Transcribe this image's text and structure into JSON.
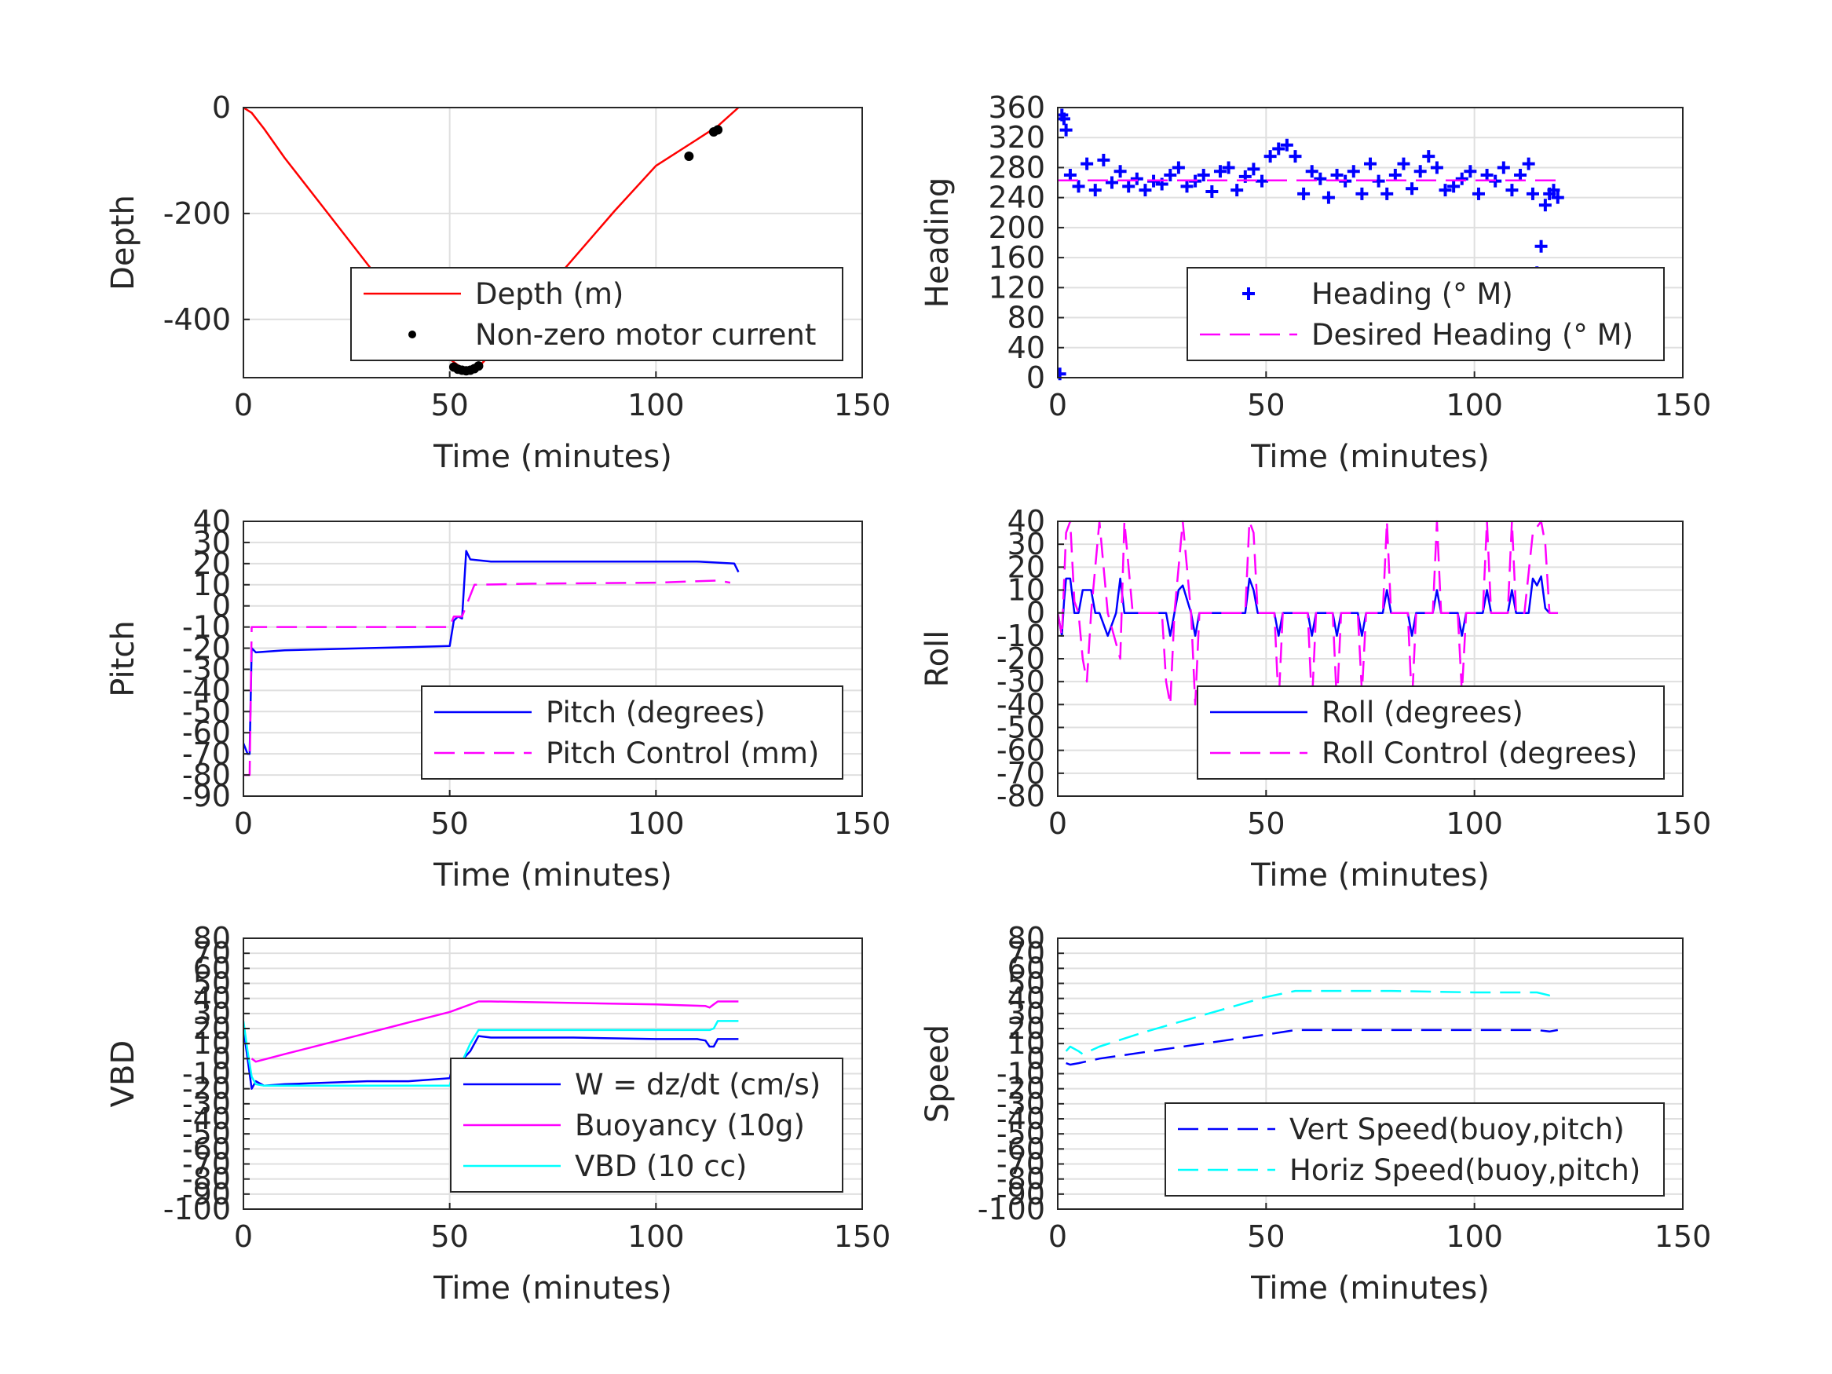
{
  "chart_data": [
    {
      "id": "depth",
      "type": "line",
      "ylabel": "Depth",
      "xlabel": "Time (minutes)",
      "xlim": [
        0,
        150
      ],
      "ylim": [
        -510,
        0
      ],
      "xticks": [
        0,
        50,
        100,
        150
      ],
      "yticks": [
        0,
        -200,
        -400
      ],
      "ytick_labels": [
        "0",
        "-200",
        "-400"
      ],
      "grid": true,
      "legend_position": "lower-right",
      "series": [
        {
          "name": "Depth (m)",
          "style": "solid",
          "color": "#ff0000",
          "x": [
            0,
            2,
            5,
            10,
            20,
            30,
            40,
            50,
            53,
            55,
            57,
            60,
            70,
            80,
            90,
            100,
            110,
            115,
            120
          ],
          "y": [
            0,
            -10,
            -40,
            -95,
            -195,
            -295,
            -395,
            -475,
            -492,
            -495,
            -490,
            -465,
            -375,
            -285,
            -195,
            -110,
            -60,
            -35,
            0
          ]
        },
        {
          "name": "Non-zero motor current",
          "style": "markers",
          "color": "#000000",
          "x": [
            41,
            51,
            52,
            53,
            54,
            55,
            56,
            57,
            108,
            114,
            115
          ],
          "y": [
            -425,
            -490,
            -494,
            -496,
            -497,
            -496,
            -493,
            -488,
            -92,
            -46,
            -42
          ]
        }
      ]
    },
    {
      "id": "heading",
      "type": "line",
      "ylabel": "Heading",
      "xlabel": "Time (minutes)",
      "xlim": [
        0,
        150
      ],
      "ylim": [
        0,
        360
      ],
      "xticks": [
        0,
        50,
        100,
        150
      ],
      "yticks": [
        0,
        40,
        80,
        120,
        160,
        200,
        240,
        280,
        320,
        360
      ],
      "ytick_labels": [
        "0",
        "40",
        "80",
        "120",
        "160",
        "200",
        "240",
        "280",
        "320",
        "360"
      ],
      "grid": true,
      "legend_position": "lower-right",
      "series": [
        {
          "name": "Heading (° M)",
          "style": "markers-plus",
          "color": "#0000ff",
          "x": [
            0.5,
            1,
            1.5,
            2,
            3,
            5,
            7,
            9,
            11,
            13,
            15,
            17,
            19,
            21,
            23,
            25,
            27,
            29,
            31,
            33,
            35,
            37,
            39,
            41,
            43,
            45,
            47,
            49,
            51,
            53,
            55,
            57,
            59,
            61,
            63,
            65,
            67,
            69,
            71,
            73,
            75,
            77,
            79,
            81,
            83,
            85,
            87,
            89,
            91,
            93,
            95,
            97,
            99,
            101,
            103,
            105,
            107,
            109,
            111,
            113,
            114,
            115,
            116,
            117,
            118,
            119,
            120
          ],
          "y": [
            5,
            350,
            345,
            330,
            270,
            255,
            285,
            250,
            290,
            260,
            275,
            255,
            265,
            250,
            262,
            258,
            270,
            280,
            255,
            262,
            270,
            248,
            275,
            280,
            250,
            268,
            278,
            262,
            295,
            305,
            310,
            295,
            245,
            275,
            265,
            240,
            270,
            262,
            275,
            245,
            285,
            262,
            245,
            270,
            285,
            252,
            275,
            295,
            280,
            250,
            255,
            265,
            275,
            245,
            270,
            262,
            280,
            250,
            270,
            285,
            245,
            140,
            175,
            230,
            245,
            250,
            240
          ]
        },
        {
          "name": "Desired Heading (° M)",
          "style": "dashed",
          "color": "#ff00ff",
          "x": [
            0,
            120
          ],
          "y": [
            263,
            263
          ]
        }
      ]
    },
    {
      "id": "pitch",
      "type": "line",
      "ylabel": "Pitch",
      "xlabel": "Time (minutes)",
      "xlim": [
        0,
        150
      ],
      "ylim": [
        -90,
        40
      ],
      "xticks": [
        0,
        50,
        100,
        150
      ],
      "yticks": [
        40,
        30,
        20,
        10,
        0,
        -10,
        -20,
        -30,
        -40,
        -50,
        -60,
        -70,
        -80,
        -90
      ],
      "ytick_labels": [
        "40",
        "30",
        "20",
        "10",
        "0",
        "-10",
        "-20",
        "-30",
        "-40",
        "-50",
        "-60",
        "-70",
        "-80",
        "-90"
      ],
      "grid": true,
      "legend_position": "lower-right",
      "series": [
        {
          "name": "Pitch (degrees)",
          "style": "solid",
          "color": "#0000ff",
          "x": [
            0,
            1,
            1.5,
            2,
            3,
            10,
            20,
            30,
            40,
            50,
            51,
            52,
            53,
            54,
            55,
            60,
            80,
            100,
            110,
            119,
            120
          ],
          "y": [
            -65,
            -70,
            -70,
            -20,
            -22,
            -21,
            -20.5,
            -20,
            -19.5,
            -19,
            -7,
            -5,
            -6,
            26,
            22,
            21,
            21,
            21,
            21,
            20,
            16
          ]
        },
        {
          "name": "Pitch Control (mm)",
          "style": "dashed",
          "color": "#ff00ff",
          "x": [
            0,
            1.5,
            2,
            3,
            50,
            51,
            53,
            56,
            70,
            100,
            115,
            118
          ],
          "y": [
            -80,
            -80,
            -10,
            -10,
            -10,
            -5,
            -5,
            10,
            10.5,
            11,
            12,
            11
          ]
        }
      ]
    },
    {
      "id": "roll",
      "type": "line",
      "ylabel": "Roll",
      "xlabel": "Time (minutes)",
      "xlim": [
        0,
        150
      ],
      "ylim": [
        -80,
        40
      ],
      "xticks": [
        0,
        50,
        100,
        150
      ],
      "yticks": [
        40,
        30,
        20,
        10,
        0,
        -10,
        -20,
        -30,
        -40,
        -50,
        -60,
        -70,
        -80
      ],
      "ytick_labels": [
        "40",
        "30",
        "20",
        "10",
        "0",
        "-10",
        "-20",
        "-30",
        "-40",
        "-50",
        "-60",
        "-70",
        "-80"
      ],
      "grid": true,
      "legend_position": "lower-right",
      "series": [
        {
          "name": "Roll (degrees)",
          "style": "solid",
          "color": "#0000ff",
          "x": [
            0,
            1,
            1.5,
            2,
            3,
            4,
            5,
            6,
            8,
            9,
            10,
            12,
            14,
            15,
            16,
            18,
            26,
            27,
            28,
            29,
            30,
            32,
            33,
            34,
            36,
            45,
            46,
            47,
            48,
            52,
            53,
            54,
            56,
            60,
            61,
            62,
            64,
            66,
            67,
            68,
            70,
            72,
            73,
            74,
            78,
            79,
            80,
            84,
            85,
            86,
            90,
            91,
            92,
            96,
            97,
            98,
            102,
            103,
            104,
            108,
            109,
            110,
            113,
            114,
            115,
            116,
            117,
            118,
            120
          ],
          "y": [
            0,
            -10,
            5,
            15,
            15,
            0,
            0,
            10,
            10,
            0,
            0,
            -10,
            0,
            15,
            0,
            0,
            0,
            -10,
            0,
            10,
            12,
            0,
            -10,
            0,
            0,
            0,
            15,
            10,
            0,
            0,
            -10,
            0,
            0,
            0,
            -10,
            0,
            0,
            0,
            -10,
            0,
            0,
            0,
            -10,
            0,
            0,
            10,
            0,
            0,
            -10,
            0,
            0,
            10,
            0,
            0,
            -10,
            0,
            0,
            10,
            0,
            0,
            10,
            0,
            0,
            15,
            12,
            16,
            2,
            0,
            0
          ]
        },
        {
          "name": "Roll Control (degrees)",
          "style": "dashed",
          "color": "#ff00ff",
          "x": [
            0,
            1,
            2,
            3,
            4,
            5,
            6,
            7,
            8,
            10,
            12,
            15,
            16,
            18,
            20,
            25,
            26,
            27,
            28,
            30,
            32,
            33,
            34,
            36,
            40,
            45,
            46,
            47,
            48,
            50,
            52,
            53,
            54,
            56,
            60,
            61,
            62,
            64,
            66,
            67,
            68,
            72,
            73,
            74,
            78,
            79,
            80,
            84,
            85,
            86,
            88,
            90,
            91,
            92,
            96,
            97,
            98,
            100,
            102,
            103,
            104,
            108,
            109,
            110,
            112,
            114,
            116,
            117,
            118,
            120
          ],
          "y": [
            0,
            -10,
            35,
            40,
            5,
            0,
            -20,
            -30,
            0,
            40,
            0,
            -20,
            40,
            0,
            0,
            0,
            -30,
            -40,
            0,
            40,
            0,
            -40,
            0,
            0,
            0,
            0,
            40,
            35,
            0,
            0,
            0,
            -40,
            0,
            0,
            0,
            -40,
            0,
            0,
            0,
            -40,
            0,
            0,
            -35,
            0,
            0,
            40,
            0,
            0,
            -40,
            0,
            0,
            0,
            40,
            0,
            0,
            -35,
            0,
            0,
            0,
            40,
            0,
            0,
            40,
            0,
            0,
            35,
            40,
            30,
            0,
            0
          ]
        }
      ]
    },
    {
      "id": "vbd",
      "type": "line",
      "ylabel": "VBD",
      "xlabel": "Time (minutes)",
      "xlim": [
        0,
        150
      ],
      "ylim": [
        -100,
        80
      ],
      "xticks": [
        0,
        50,
        100,
        150
      ],
      "yticks": [
        80,
        70,
        60,
        50,
        40,
        30,
        20,
        10,
        0,
        -10,
        -20,
        -30,
        -40,
        -50,
        -60,
        -70,
        -80,
        -90,
        -100
      ],
      "ytick_labels": [
        "80",
        "70",
        "60",
        "50",
        "40",
        "30",
        "20",
        "10",
        "0",
        "-10",
        "-20",
        "-30",
        "-40",
        "-50",
        "-60",
        "-70",
        "-80",
        "-90",
        "-100"
      ],
      "grid": true,
      "legend_position": "lower-right",
      "series": [
        {
          "name": "W = dz/dt (cm/s)",
          "style": "solid",
          "color": "#0000ff",
          "x": [
            0,
            1,
            2,
            3,
            5,
            10,
            20,
            30,
            40,
            50,
            51,
            53,
            55,
            57,
            60,
            80,
            100,
            110,
            112,
            113,
            114,
            115,
            120
          ],
          "y": [
            20,
            0,
            -20,
            -15,
            -18,
            -17,
            -16,
            -15,
            -15,
            -13,
            -2,
            -1,
            5,
            15,
            14,
            14,
            13,
            13,
            12,
            8,
            8,
            13,
            13
          ]
        },
        {
          "name": "Buoyancy (10g)",
          "style": "solid",
          "color": "#ff00ff",
          "x": [
            2,
            3,
            10,
            20,
            30,
            40,
            50,
            57,
            60,
            80,
            100,
            112,
            113,
            114,
            115,
            120
          ],
          "y": [
            0,
            -2,
            3,
            10,
            17,
            24,
            31,
            38,
            38,
            37,
            36,
            35,
            34,
            36,
            38,
            38
          ]
        },
        {
          "name": "VBD (10 cc)",
          "style": "solid",
          "color": "#00ffff",
          "x": [
            0,
            1,
            2,
            3,
            5,
            10,
            20,
            30,
            40,
            50,
            51,
            53,
            55,
            57,
            60,
            80,
            100,
            113,
            114,
            115,
            120
          ],
          "y": [
            25,
            5,
            -12,
            -17,
            -18,
            -18,
            -18,
            -18,
            -18,
            -18,
            -8,
            -2,
            10,
            19,
            19,
            19,
            19,
            19,
            20,
            25,
            25
          ]
        }
      ]
    },
    {
      "id": "speed",
      "type": "line",
      "ylabel": "Speed",
      "xlabel": "Time (minutes)",
      "xlim": [
        0,
        150
      ],
      "ylim": [
        -100,
        80
      ],
      "xticks": [
        0,
        50,
        100,
        150
      ],
      "yticks": [
        80,
        70,
        60,
        50,
        40,
        30,
        20,
        10,
        0,
        -10,
        -20,
        -30,
        -40,
        -50,
        -60,
        -70,
        -80,
        -90,
        -100
      ],
      "ytick_labels": [
        "80",
        "70",
        "60",
        "50",
        "40",
        "30",
        "20",
        "10",
        "0",
        "-10",
        "-20",
        "-30",
        "-40",
        "-50",
        "-60",
        "-70",
        "-80",
        "-90",
        "-100"
      ],
      "grid": true,
      "legend_position": "lower-right",
      "series": [
        {
          "name": "Vert Speed(buoy,pitch)",
          "style": "dashed",
          "color": "#0000ff",
          "x": [
            2,
            3,
            5,
            10,
            20,
            30,
            40,
            50,
            57,
            60,
            80,
            100,
            115,
            118,
            120
          ],
          "y": [
            -3,
            -4,
            -3,
            0,
            4,
            8,
            12,
            16,
            19,
            19,
            19,
            19,
            19,
            18,
            19
          ]
        },
        {
          "name": "Horiz Speed(buoy,pitch)",
          "style": "dashed",
          "color": "#00ffff",
          "x": [
            2,
            3,
            5,
            6,
            10,
            20,
            30,
            40,
            50,
            57,
            60,
            80,
            100,
            115,
            118,
            120
          ],
          "y": [
            5,
            8,
            5,
            3,
            8,
            17,
            25,
            33,
            41,
            45,
            45,
            45,
            44,
            44,
            42,
            44
          ]
        }
      ]
    }
  ]
}
